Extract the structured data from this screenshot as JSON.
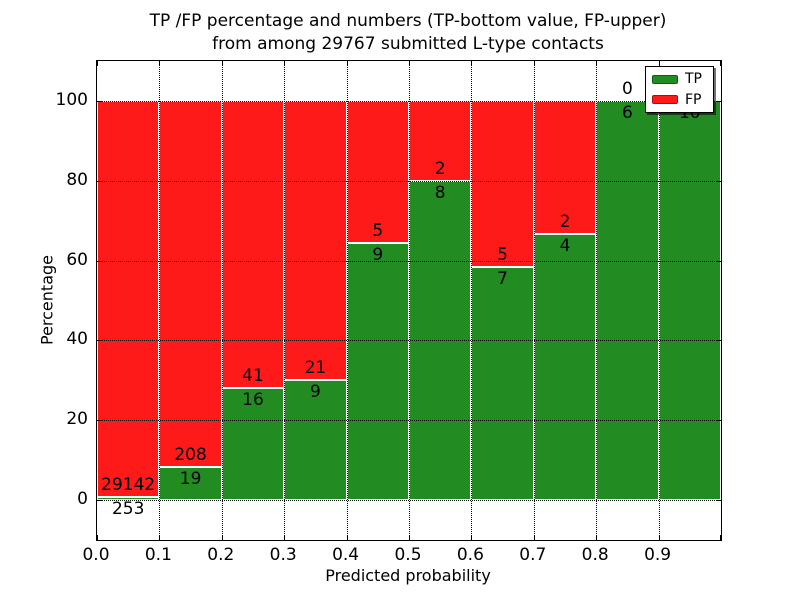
{
  "figure": {
    "title_line1": "TP /FP percentage and numbers (TP-bottom value, FP-upper)",
    "title_line2": "from among 29767 submitted L-type contacts"
  },
  "colors": {
    "tp_green": "#228B22",
    "fp_red": "#FF1A1A",
    "background": "#FFFFFF",
    "text": "#000000"
  },
  "chart_data": {
    "type": "bar",
    "stacked": true,
    "title": "TP /FP percentage and numbers (TP-bottom value, FP-upper)\nfrom among 29767 submitted L-type contacts",
    "xlabel": "Predicted probability",
    "ylabel": "Percentage",
    "total_submitted": 29767,
    "xlim": [
      0.0,
      1.0
    ],
    "ylim": [
      -10,
      110
    ],
    "x_tick_labels": [
      "0.0",
      "0.1",
      "0.2",
      "0.3",
      "0.4",
      "0.5",
      "0.6",
      "0.7",
      "0.8",
      "0.9"
    ],
    "y_ticks": [
      0,
      20,
      40,
      60,
      80,
      100
    ],
    "y_tick_labels": [
      "0",
      "20",
      "40",
      "60",
      "80",
      "100"
    ],
    "bins": [
      [
        0.0,
        0.1
      ],
      [
        0.1,
        0.2
      ],
      [
        0.2,
        0.3
      ],
      [
        0.3,
        0.4
      ],
      [
        0.4,
        0.5
      ],
      [
        0.5,
        0.6
      ],
      [
        0.6,
        0.7
      ],
      [
        0.7,
        0.8
      ],
      [
        0.8,
        0.9
      ],
      [
        0.9,
        1.0
      ]
    ],
    "series": [
      {
        "name": "TP",
        "color": "#228B22",
        "counts": [
          253,
          19,
          16,
          9,
          9,
          8,
          7,
          4,
          6,
          10
        ]
      },
      {
        "name": "FP",
        "color": "#FF1A1A",
        "counts": [
          29142,
          208,
          41,
          21,
          5,
          2,
          5,
          2,
          0,
          0
        ]
      }
    ],
    "tp_percentages": [
      0.86,
      8.37,
      28.07,
      30.0,
      64.29,
      80.0,
      58.33,
      66.67,
      100.0,
      100.0
    ],
    "grid": "dotted black, drawn above bars",
    "legend": {
      "position": "upper right",
      "items": [
        {
          "label": "TP",
          "color": "#228B22"
        },
        {
          "label": "FP",
          "color": "#FF1A1A"
        }
      ]
    }
  }
}
